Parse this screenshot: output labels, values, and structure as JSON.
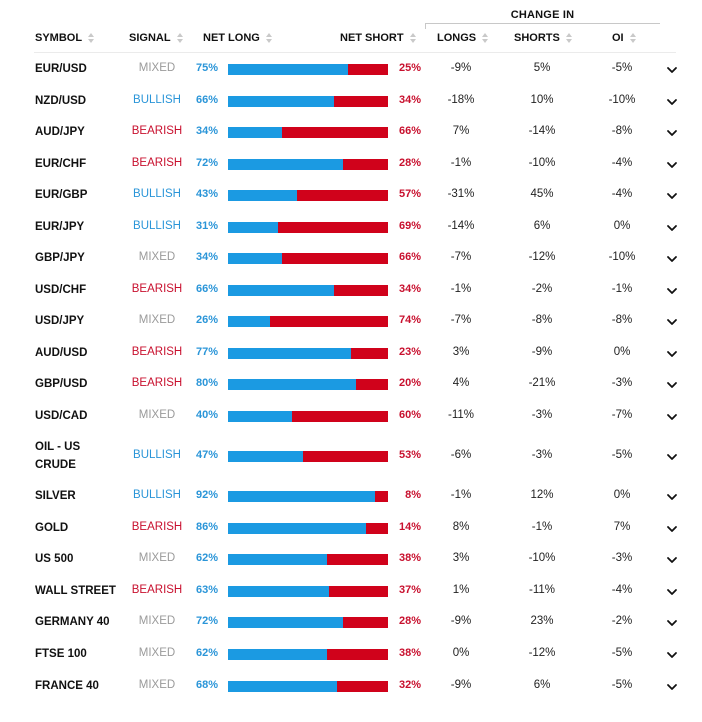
{
  "table": {
    "group_header": "CHANGE IN",
    "columns": {
      "symbol": "SYMBOL",
      "signal": "SIGNAL",
      "net_long": "NET LONG",
      "net_short": "NET SHORT",
      "longs": "LONGS",
      "shorts": "SHORTS",
      "oi": "OI"
    },
    "sort_icon": "sort-up-down-icon",
    "expand_icon": "chevron-down-icon",
    "colors": {
      "long": "#1b9ae2",
      "short": "#d0021b",
      "bullish": "#2a95d8",
      "bearish": "#c8102e",
      "mixed": "#9a9a9a"
    },
    "rows": [
      {
        "symbol": "EUR/USD",
        "signal": "MIXED",
        "net_long": "75%",
        "net_short": "25%",
        "long_pct": 75,
        "longs": "-9%",
        "shorts": "5%",
        "oi": "-5%"
      },
      {
        "symbol": "NZD/USD",
        "signal": "BULLISH",
        "net_long": "66%",
        "net_short": "34%",
        "long_pct": 66,
        "longs": "-18%",
        "shorts": "10%",
        "oi": "-10%"
      },
      {
        "symbol": "AUD/JPY",
        "signal": "BEARISH",
        "net_long": "34%",
        "net_short": "66%",
        "long_pct": 34,
        "longs": "7%",
        "shorts": "-14%",
        "oi": "-8%"
      },
      {
        "symbol": "EUR/CHF",
        "signal": "BEARISH",
        "net_long": "72%",
        "net_short": "28%",
        "long_pct": 72,
        "longs": "-1%",
        "shorts": "-10%",
        "oi": "-4%"
      },
      {
        "symbol": "EUR/GBP",
        "signal": "BULLISH",
        "net_long": "43%",
        "net_short": "57%",
        "long_pct": 43,
        "longs": "-31%",
        "shorts": "45%",
        "oi": "-4%"
      },
      {
        "symbol": "EUR/JPY",
        "signal": "BULLISH",
        "net_long": "31%",
        "net_short": "69%",
        "long_pct": 31,
        "longs": "-14%",
        "shorts": "6%",
        "oi": "0%"
      },
      {
        "symbol": "GBP/JPY",
        "signal": "MIXED",
        "net_long": "34%",
        "net_short": "66%",
        "long_pct": 34,
        "longs": "-7%",
        "shorts": "-12%",
        "oi": "-10%"
      },
      {
        "symbol": "USD/CHF",
        "signal": "BEARISH",
        "net_long": "66%",
        "net_short": "34%",
        "long_pct": 66,
        "longs": "-1%",
        "shorts": "-2%",
        "oi": "-1%"
      },
      {
        "symbol": "USD/JPY",
        "signal": "MIXED",
        "net_long": "26%",
        "net_short": "74%",
        "long_pct": 26,
        "longs": "-7%",
        "shorts": "-8%",
        "oi": "-8%"
      },
      {
        "symbol": "AUD/USD",
        "signal": "BEARISH",
        "net_long": "77%",
        "net_short": "23%",
        "long_pct": 77,
        "longs": "3%",
        "shorts": "-9%",
        "oi": "0%"
      },
      {
        "symbol": "GBP/USD",
        "signal": "BEARISH",
        "net_long": "80%",
        "net_short": "20%",
        "long_pct": 80,
        "longs": "4%",
        "shorts": "-21%",
        "oi": "-3%"
      },
      {
        "symbol": "USD/CAD",
        "signal": "MIXED",
        "net_long": "40%",
        "net_short": "60%",
        "long_pct": 40,
        "longs": "-11%",
        "shorts": "-3%",
        "oi": "-7%"
      },
      {
        "symbol": "OIL - US CRUDE",
        "symbol_lines": [
          "OIL - US",
          "CRUDE"
        ],
        "signal": "BULLISH",
        "net_long": "47%",
        "net_short": "53%",
        "long_pct": 47,
        "longs": "-6%",
        "shorts": "-3%",
        "oi": "-5%"
      },
      {
        "symbol": "SILVER",
        "signal": "BULLISH",
        "net_long": "92%",
        "net_short": "8%",
        "long_pct": 92,
        "longs": "-1%",
        "shorts": "12%",
        "oi": "0%"
      },
      {
        "symbol": "GOLD",
        "signal": "BEARISH",
        "net_long": "86%",
        "net_short": "14%",
        "long_pct": 86,
        "longs": "8%",
        "shorts": "-1%",
        "oi": "7%"
      },
      {
        "symbol": "US 500",
        "signal": "MIXED",
        "net_long": "62%",
        "net_short": "38%",
        "long_pct": 62,
        "longs": "3%",
        "shorts": "-10%",
        "oi": "-3%"
      },
      {
        "symbol": "WALL STREET",
        "signal": "BEARISH",
        "net_long": "63%",
        "net_short": "37%",
        "long_pct": 63,
        "longs": "1%",
        "shorts": "-11%",
        "oi": "-4%"
      },
      {
        "symbol": "GERMANY 40",
        "signal": "MIXED",
        "net_long": "72%",
        "net_short": "28%",
        "long_pct": 72,
        "longs": "-9%",
        "shorts": "23%",
        "oi": "-2%"
      },
      {
        "symbol": "FTSE 100",
        "signal": "MIXED",
        "net_long": "62%",
        "net_short": "38%",
        "long_pct": 62,
        "longs": "0%",
        "shorts": "-12%",
        "oi": "-5%"
      },
      {
        "symbol": "FRANCE 40",
        "signal": "MIXED",
        "net_long": "68%",
        "net_short": "32%",
        "long_pct": 68,
        "longs": "-9%",
        "shorts": "6%",
        "oi": "-5%"
      }
    ]
  }
}
